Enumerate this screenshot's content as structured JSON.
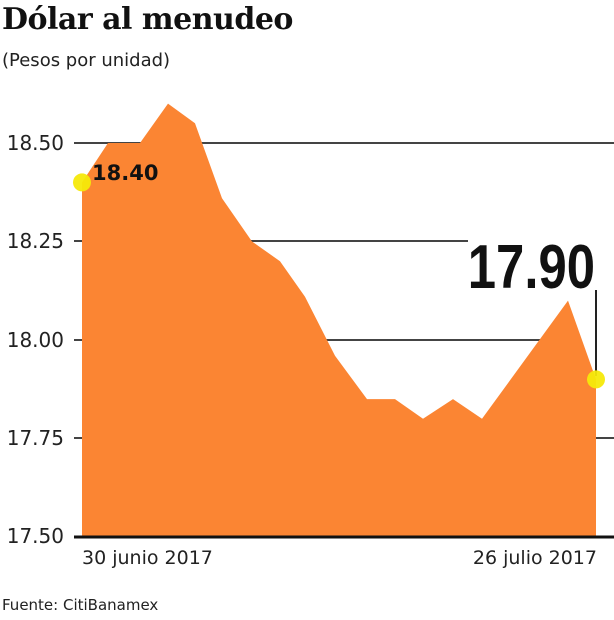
{
  "header": {
    "title": "Dólar al menudeo",
    "subtitle": "(Pesos por unidad)"
  },
  "footer": {
    "source": "Fuente: CitiBanamex"
  },
  "colors": {
    "area": "#FB8533",
    "marker": "#F5E90A",
    "gridline": "#444444"
  },
  "annotations": {
    "start_value": "18.40",
    "end_value": "17.90"
  },
  "chart_data": {
    "type": "area",
    "title": "Dólar al menudeo",
    "subtitle": "(Pesos por unidad)",
    "xlabel": "",
    "ylabel": "Pesos por unidad",
    "x_tick_labels": [
      "30 junio 2017",
      "26 julio 2017"
    ],
    "y_ticks": [
      17.5,
      17.75,
      18.0,
      18.25,
      18.5
    ],
    "y_tick_labels": [
      "17.50",
      "17.75",
      "18.00",
      "18.25",
      "18.50"
    ],
    "ylim": [
      17.5,
      18.6
    ],
    "grid": true,
    "legend": null,
    "series": [
      {
        "name": "Dólar al menudeo",
        "values": [
          18.4,
          18.5,
          18.5,
          18.6,
          18.55,
          18.36,
          18.25,
          18.2,
          18.11,
          17.96,
          17.85,
          17.85,
          17.8,
          17.85,
          17.8,
          18.1,
          17.9
        ]
      }
    ],
    "annotations": [
      {
        "label": "18.40",
        "point": "first"
      },
      {
        "label": "17.90",
        "point": "last"
      }
    ],
    "source": "Fuente: CitiBanamex"
  }
}
